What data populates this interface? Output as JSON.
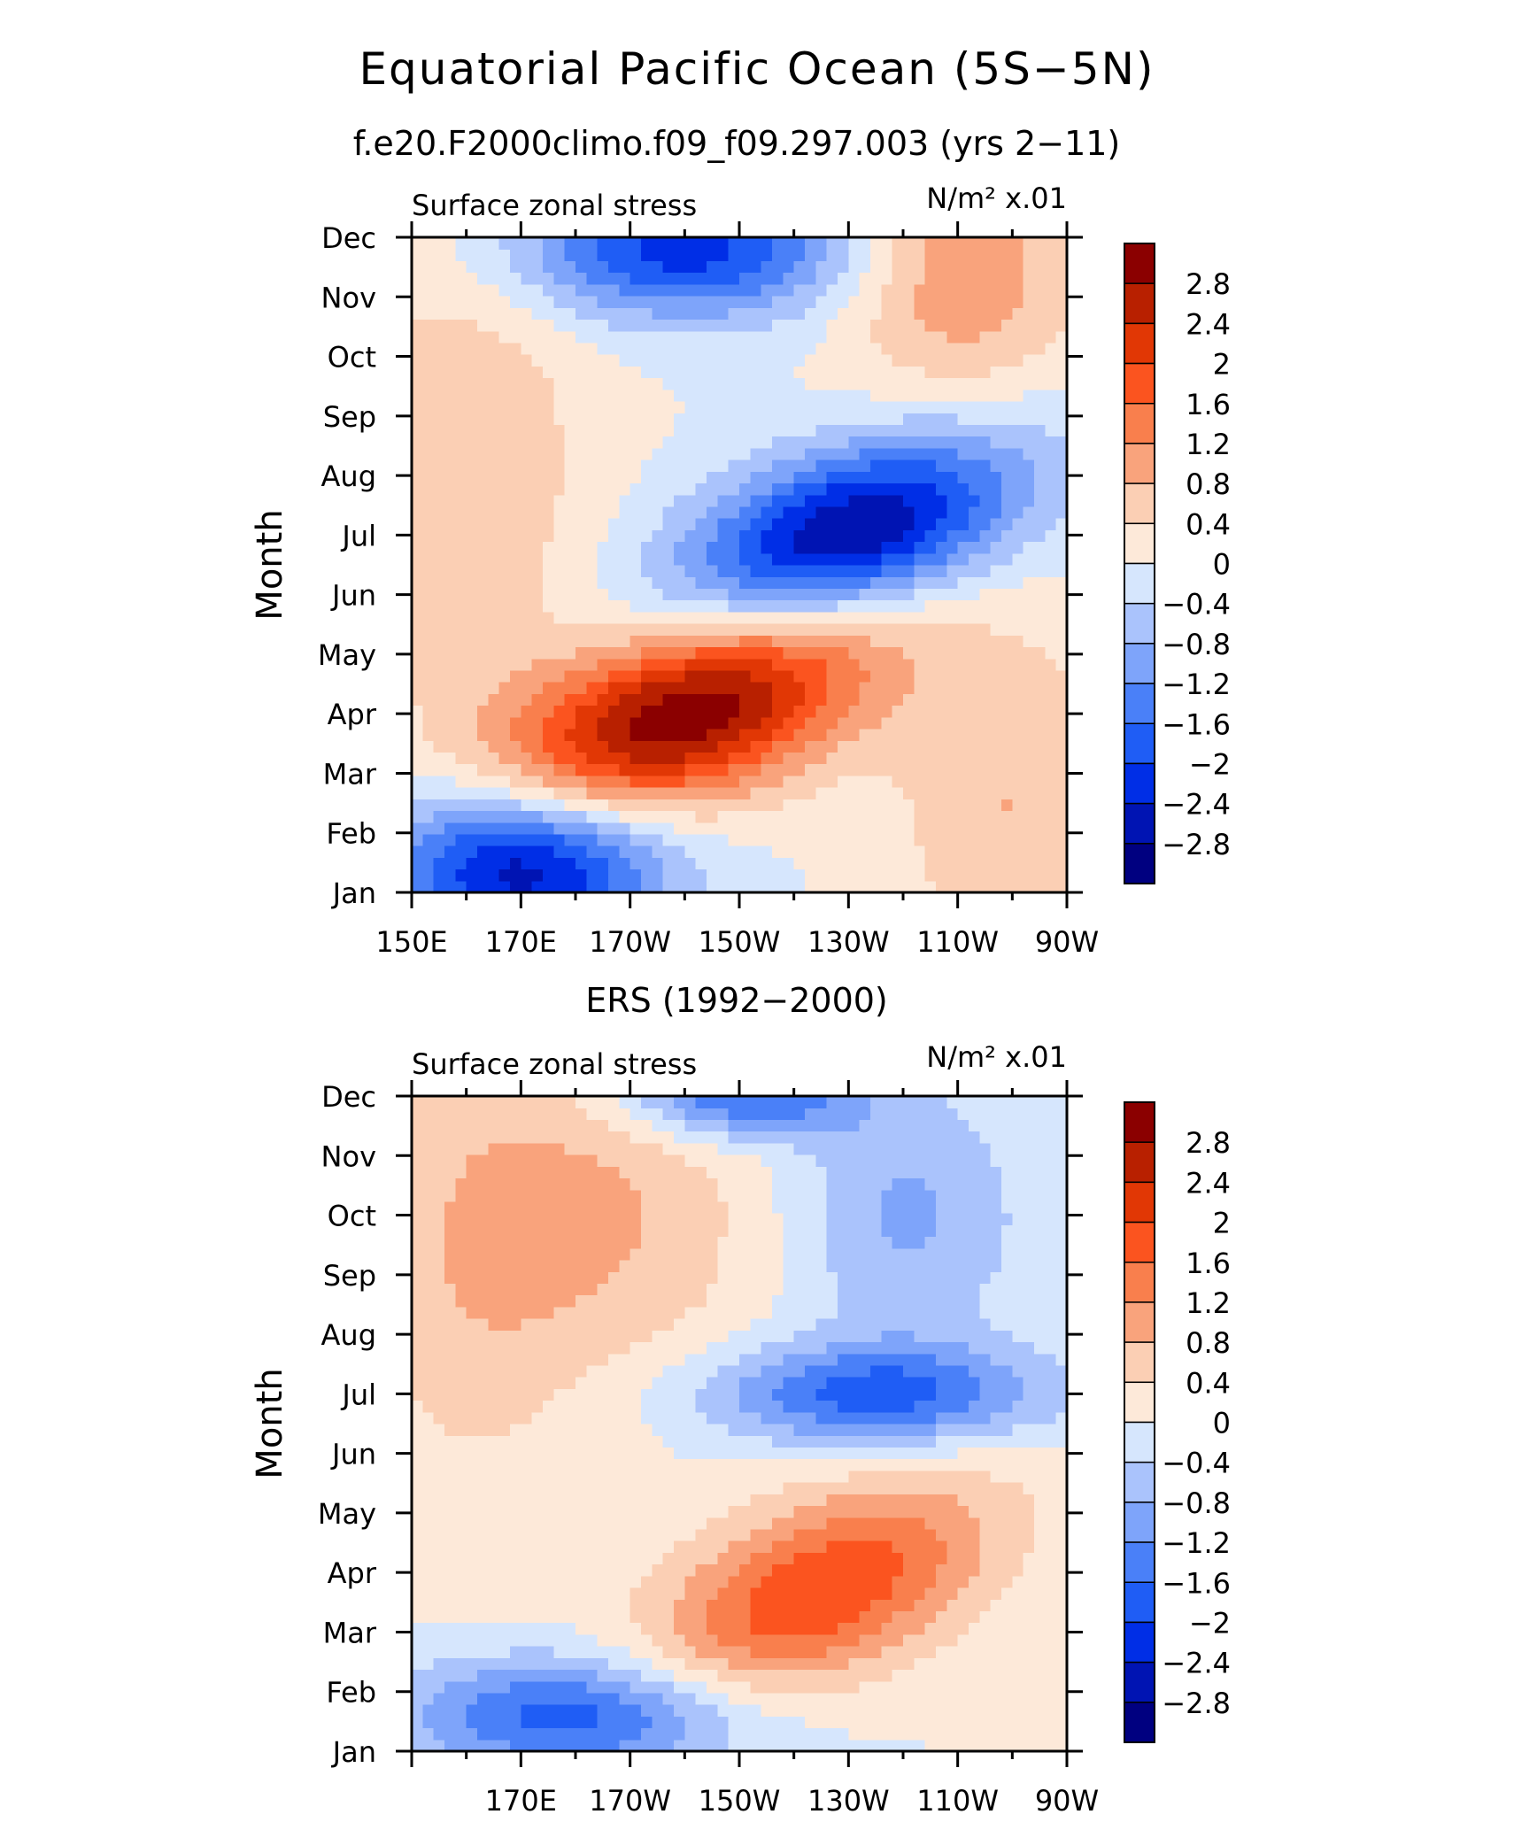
{
  "title": "Equatorial Pacific Ocean (5S−5N)",
  "colors": {
    "levels": [
      "#000080",
      "#0014b3",
      "#002ee6",
      "#1f5df5",
      "#4a80f8",
      "#7ea4fa",
      "#aac3fc",
      "#d6e6fd",
      "#fde9d9",
      "#fbcfb4",
      "#f9a37c",
      "#f97f4d",
      "#fb541f",
      "#e13705",
      "#b82000",
      "#8b0000"
    ]
  },
  "chart_data": [
    {
      "type": "contour",
      "subtitle": "f.e20.F2000climo.f09_f09.297.003 (yrs 2−11)",
      "left_label": "Surface zonal stress",
      "units_label": "N/m² x.01",
      "ylabel": "Month",
      "yticks": [
        "Jan",
        "Feb",
        "Mar",
        "Apr",
        "May",
        "Jun",
        "Jul",
        "Aug",
        "Sep",
        "Oct",
        "Nov",
        "Dec"
      ],
      "xticks": [
        "150E",
        "170E",
        "170W",
        "150W",
        "130W",
        "110W",
        "90W"
      ],
      "xlim": [
        150,
        270
      ],
      "cbar_labels": [
        "2.8",
        "2.4",
        "2",
        "1.6",
        "1.2",
        "0.8",
        "0.4",
        "0",
        "−0.4",
        "−0.8",
        "−1.2",
        "−1.6",
        "−2",
        "−2.4",
        "−2.8"
      ],
      "levels": [
        -2.8,
        -2.4,
        -2,
        -1.6,
        -1.2,
        -0.8,
        -0.4,
        0,
        0.4,
        0.8,
        1.2,
        1.6,
        2,
        2.4,
        2.8
      ],
      "features": [
        {
          "lon": 200,
          "month": 4.0,
          "amp": 3.2,
          "slon": 25,
          "smon": 1.1,
          "tilt": -0.03
        },
        {
          "lon": 230,
          "month": 7.0,
          "amp": -3.0,
          "slon": 22,
          "smon": 1.0,
          "tilt": -0.025
        },
        {
          "lon": 170,
          "month": 1.5,
          "amp": -3.0,
          "slon": 18,
          "smon": 1.0,
          "tilt": 0
        },
        {
          "lon": 200,
          "month": 11.8,
          "amp": -2.2,
          "slon": 22,
          "smon": 0.8,
          "tilt": 0
        },
        {
          "lon": 250,
          "month": 11.5,
          "amp": 1.2,
          "slon": 15,
          "smon": 1.5,
          "tilt": 0
        },
        {
          "lon": 160,
          "month": 8.0,
          "amp": 0.8,
          "slon": 15,
          "smon": 3.0,
          "tilt": 0
        },
        {
          "lon": 260,
          "month": 2.5,
          "amp": 0.8,
          "slon": 15,
          "smon": 2.0,
          "tilt": 0
        }
      ]
    },
    {
      "type": "contour",
      "subtitle": "ERS (1992−2000)",
      "left_label": "Surface zonal stress",
      "units_label": "N/m² x.01",
      "ylabel": "Month",
      "yticks": [
        "Jan",
        "Feb",
        "Mar",
        "Apr",
        "May",
        "Jun",
        "Jul",
        "Aug",
        "Sep",
        "Oct",
        "Nov",
        "Dec"
      ],
      "xticks": [
        "170E",
        "170W",
        "150W",
        "130W",
        "110W",
        "90W"
      ],
      "xlim": [
        150,
        270
      ],
      "cbar_labels": [
        "2.8",
        "2.4",
        "2",
        "1.6",
        "1.2",
        "0.8",
        "0.4",
        "0",
        "−0.4",
        "−0.8",
        "−1.2",
        "−1.6",
        "−2",
        "−2.4",
        "−2.8"
      ],
      "levels": [
        -2.8,
        -2.4,
        -2,
        -1.6,
        -1.2,
        -0.8,
        -0.4,
        0,
        0.4,
        0.8,
        1.2,
        1.6,
        2,
        2.4,
        2.8
      ],
      "features": [
        {
          "lon": 225,
          "month": 3.7,
          "amp": 2.0,
          "slon": 22,
          "smon": 1.1,
          "tilt": -0.03
        },
        {
          "lon": 235,
          "month": 7.0,
          "amp": -1.8,
          "slon": 22,
          "smon": 0.6,
          "tilt": 0
        },
        {
          "lon": 180,
          "month": 1.6,
          "amp": -1.9,
          "slon": 22,
          "smon": 0.7,
          "tilt": 0
        },
        {
          "lon": 210,
          "month": 12.0,
          "amp": -1.8,
          "slon": 15,
          "smon": 0.5,
          "tilt": 0
        },
        {
          "lon": 240,
          "month": 10.0,
          "amp": -0.9,
          "slon": 15,
          "smon": 1.5,
          "tilt": 0
        },
        {
          "lon": 185,
          "month": 10.0,
          "amp": 0.8,
          "slon": 22,
          "smon": 2.0,
          "tilt": 0
        },
        {
          "lon": 160,
          "month": 9.0,
          "amp": 0.5,
          "slon": 15,
          "smon": 3.0,
          "tilt": 0
        }
      ]
    }
  ]
}
